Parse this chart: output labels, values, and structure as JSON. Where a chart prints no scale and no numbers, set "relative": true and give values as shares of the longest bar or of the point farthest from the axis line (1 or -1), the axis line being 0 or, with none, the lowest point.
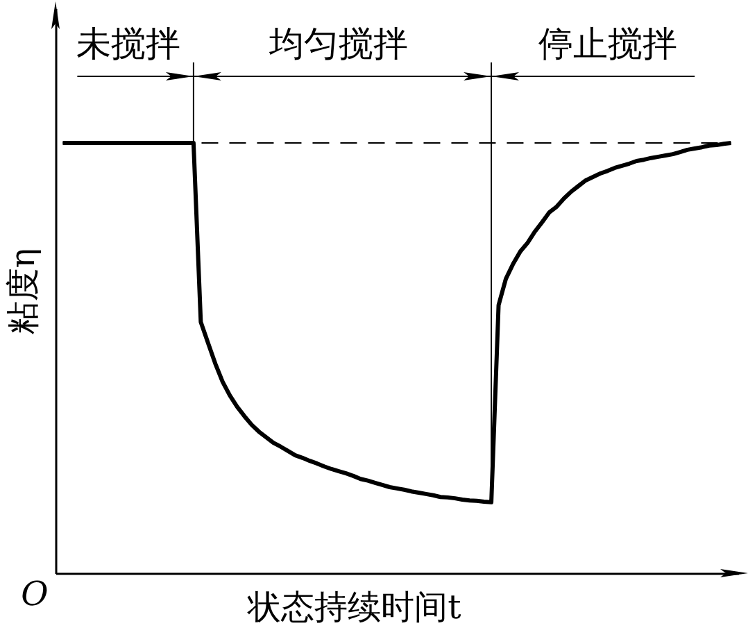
{
  "chart_data": {
    "type": "line",
    "relative": true,
    "xlabel": "状态持续时间t",
    "ylabel": "粘度η",
    "annotations": [
      "未搅拌",
      "均匀搅拌",
      "停止搅拌",
      "O"
    ],
    "categories": [
      null,
      null,
      null,
      null,
      null,
      null,
      null,
      null,
      null,
      null,
      null,
      null,
      null,
      null,
      null,
      null,
      null,
      null,
      null,
      null,
      null,
      null,
      null,
      null,
      null,
      null,
      null,
      null,
      null,
      null,
      null,
      null,
      null,
      null,
      null,
      null,
      null,
      null,
      null,
      null,
      null,
      null,
      null,
      null,
      null,
      null,
      null,
      null,
      null,
      null,
      null,
      null,
      null,
      null,
      null,
      null,
      null,
      null,
      null,
      null,
      null,
      null,
      null,
      null,
      null,
      null,
      null,
      null,
      null,
      null,
      null,
      null,
      null,
      null,
      null,
      null,
      null,
      null,
      null,
      null,
      null,
      null,
      null,
      null,
      null,
      null,
      null,
      null,
      null,
      null,
      null,
      null,
      null
    ],
    "series": [
      {
        "color": "#000000",
        "values": [
          1,
          1,
          1,
          1,
          1,
          1,
          1,
          1,
          1,
          1,
          1,
          1,
          1,
          1,
          1,
          1,
          1,
          1,
          1,
          0.584,
          0.535,
          0.487,
          0.445,
          0.413,
          0.387,
          0.365,
          0.345,
          0.329,
          0.316,
          0.303,
          0.294,
          0.284,
          0.274,
          0.268,
          0.261,
          0.255,
          0.248,
          0.242,
          0.237,
          0.232,
          0.226,
          0.219,
          0.215,
          0.21,
          0.205,
          0.2,
          0.197,
          0.194,
          0.19,
          0.187,
          0.184,
          0.181,
          0.177,
          0.176,
          0.174,
          0.171,
          0.169,
          0.168,
          0.166,
          0.165,
          0.623,
          0.684,
          0.719,
          0.748,
          0.768,
          0.794,
          0.816,
          0.839,
          0.852,
          0.871,
          0.887,
          0.9,
          0.913,
          0.921,
          0.929,
          0.935,
          0.942,
          0.947,
          0.952,
          0.958,
          0.961,
          0.965,
          0.968,
          0.971,
          0.974,
          0.979,
          0.984,
          0.987,
          0.99,
          0.994,
          0.995,
          0.998,
          1
        ]
      }
    ],
    "ref_lines": [
      {
        "axis": "y",
        "value": 1,
        "line_style": "dashed",
        "color": "#000000"
      }
    ]
  }
}
